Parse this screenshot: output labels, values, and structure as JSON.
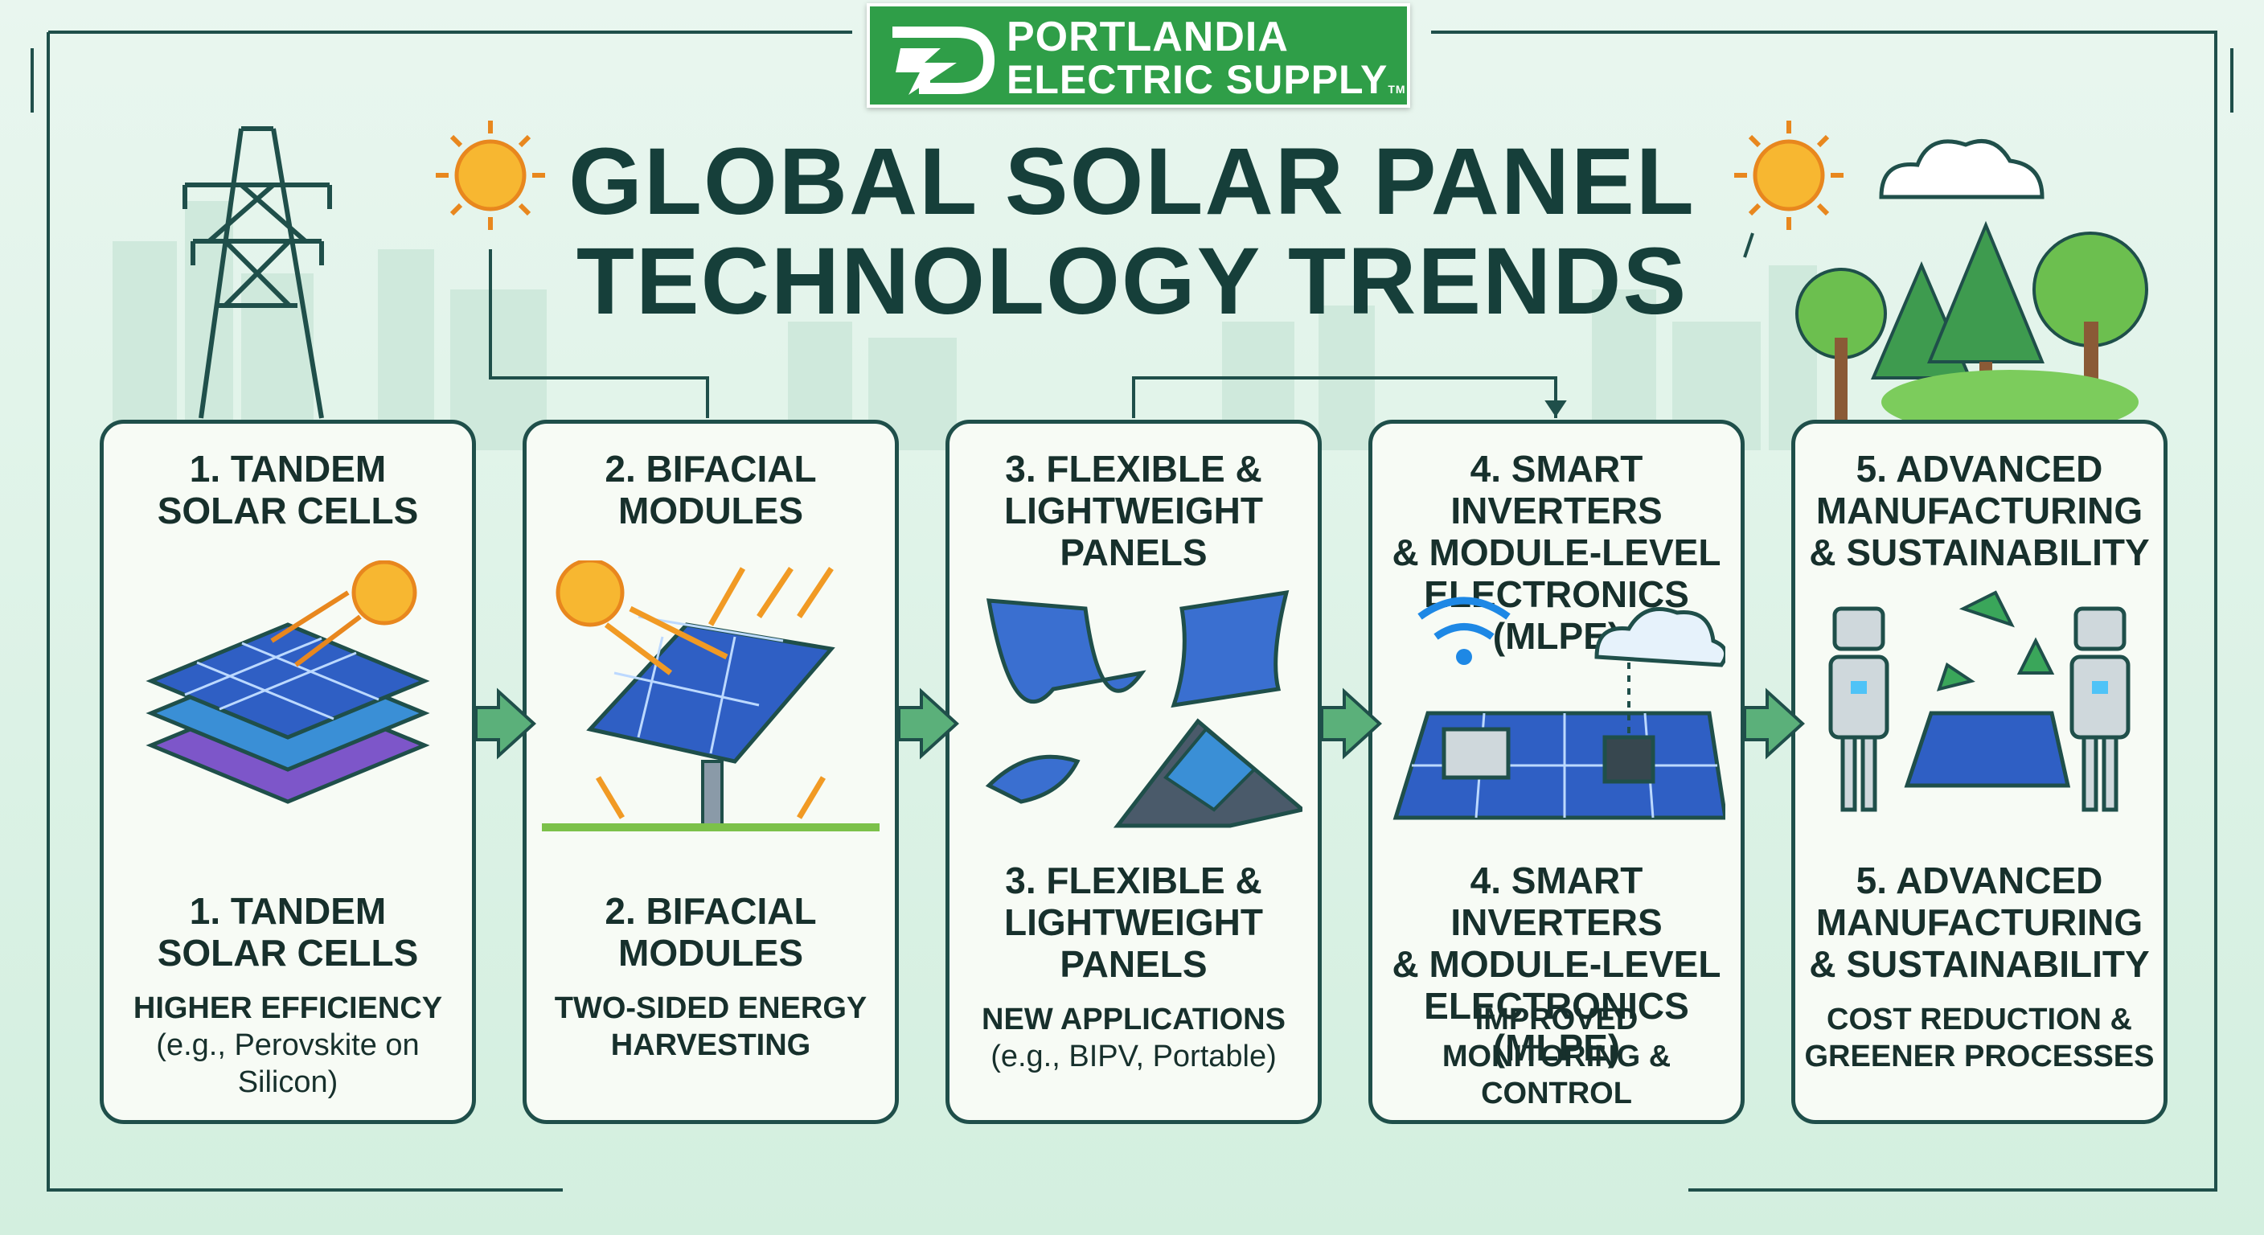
{
  "logo": {
    "line1": "PORTLANDIA",
    "line2": "ELECTRIC SUPPLY",
    "tm": "TM",
    "icon": "lightning-bolt-plug-icon"
  },
  "title": {
    "line1": "GLOBAL SOLAR PANEL",
    "line2": "TECHNOLOGY TRENDS"
  },
  "colors": {
    "card_border": "#1f4f4a",
    "logo_green": "#2f9e48",
    "arrow_green": "#5bb07a",
    "title": "#163f3a"
  },
  "cards": [
    {
      "title": [
        "1. TANDEM",
        "SOLAR CELLS"
      ],
      "desc": [
        "HIGHER EFFICIENCY"
      ],
      "sub": [
        "(e.g., Perovskite on",
        "Silicon)"
      ],
      "icon": "stacked-solar-cells-icon"
    },
    {
      "title": [
        "2. BIFACIAL",
        "MODULES"
      ],
      "desc": [
        "TWO-SIDED ENERGY",
        "HARVESTING"
      ],
      "sub": [],
      "icon": "bifacial-panel-icon"
    },
    {
      "title": [
        "3. FLEXIBLE &",
        "LIGHTWEIGHT",
        "PANELS"
      ],
      "desc": [
        "NEW APPLICATIONS"
      ],
      "sub": [
        "(e.g., BIPV, Portable)"
      ],
      "icon": "flexible-panels-icon"
    },
    {
      "title": [
        "4. SMART INVERTERS",
        "& MODULE-LEVEL",
        "ELECTRONICS (MLPE)"
      ],
      "desc": [
        "IMPROVED",
        "MONITORING &",
        "CONTROL"
      ],
      "sub": [],
      "icon": "smart-inverter-icon"
    },
    {
      "title": [
        "5. ADVANCED",
        "MANUFACTURING",
        "& SUSTAINABILITY"
      ],
      "desc": [
        "COST REDUCTION &",
        "GREENER PROCESSES"
      ],
      "sub": [],
      "icon": "robot-manufacturing-icon"
    }
  ]
}
